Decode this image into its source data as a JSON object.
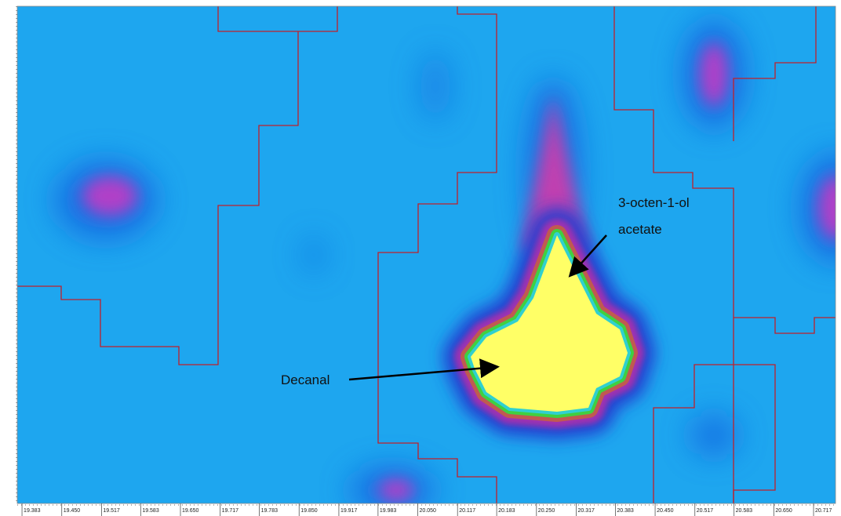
{
  "chart_data": {
    "type": "heatmap",
    "xlim": [
      19.375,
      20.754
    ],
    "xticks": [
      19.383,
      {
        "value": 19.45,
        "label": "19.450"
      },
      19.517,
      19.583,
      {
        "value": 19.65,
        "label": "19.650"
      },
      19.717,
      19.783,
      {
        "value": 19.85,
        "label": "19.850"
      },
      19.917,
      19.983,
      {
        "value": 20.05,
        "label": "20.050"
      },
      20.117,
      20.183,
      {
        "value": 20.25,
        "label": "20.250"
      },
      20.317,
      20.383,
      {
        "value": 20.45,
        "label": "20.450"
      },
      20.517,
      20.583,
      {
        "value": 20.65,
        "label": "20.650"
      },
      20.717
    ],
    "annotations": [
      {
        "lines": [
          "3-octen-1-ol",
          "acetate"
        ]
      },
      {
        "lines": [
          "Decanal"
        ]
      }
    ]
  }
}
